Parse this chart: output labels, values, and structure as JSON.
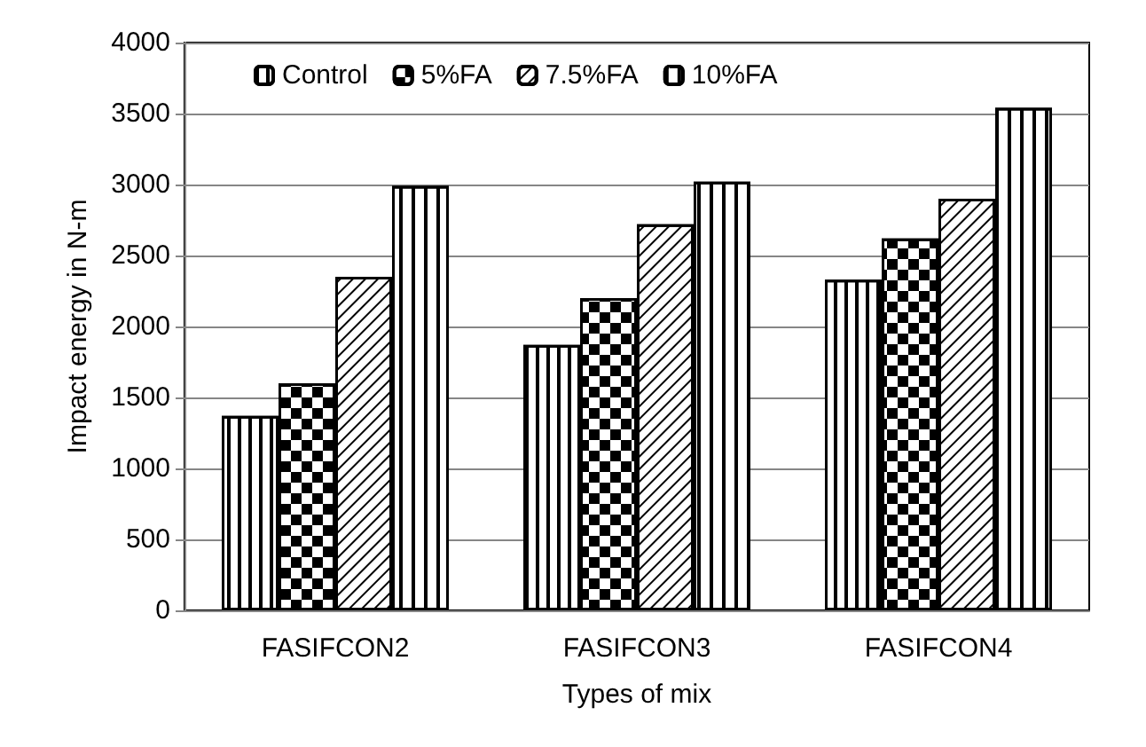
{
  "chart_data": {
    "type": "bar",
    "xlabel": "Types of mix",
    "ylabel": "Impact energy in N-m",
    "categories": [
      "FASIFCON2",
      "FASIFCON3",
      "FASIFCON4"
    ],
    "series": [
      {
        "name": "Control",
        "color": "#ffffff",
        "values": [
          1370,
          1870,
          2330
        ]
      },
      {
        "name": "5%FA",
        "color": "#ffffff",
        "values": [
          1600,
          2200,
          2620
        ]
      },
      {
        "name": "7.5%FA",
        "color": "#ffffff",
        "values": [
          2350,
          2720,
          2900
        ]
      },
      {
        "name": "10%FA",
        "color": "#ffffff",
        "values": [
          2990,
          3020,
          3540
        ]
      }
    ],
    "ylim": [
      0,
      4000
    ],
    "yticks": [
      0,
      500,
      1000,
      1500,
      2000,
      2500,
      3000,
      3500,
      4000
    ],
    "grid": "y",
    "legend": "top"
  }
}
